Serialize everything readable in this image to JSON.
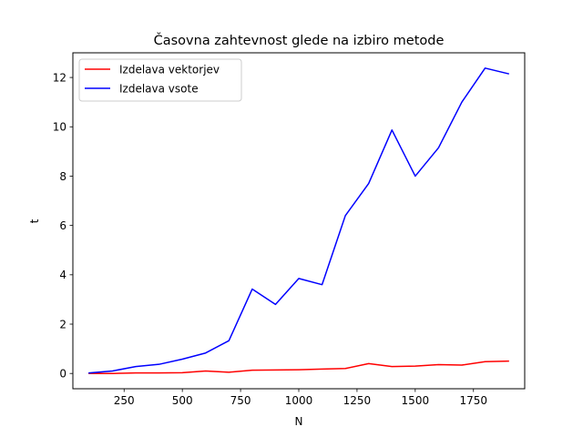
{
  "chart_data": {
    "type": "line",
    "title": "Časovna zahtevnost glede na izbiro metode",
    "xlabel": "N",
    "ylabel": "t",
    "xlim": [
      30,
      1970
    ],
    "ylim": [
      -0.62,
      13.0
    ],
    "xticks": [
      250,
      500,
      750,
      1000,
      1250,
      1500,
      1750
    ],
    "yticks": [
      0,
      2,
      4,
      6,
      8,
      10,
      12
    ],
    "grid": false,
    "legend_position": "top-left",
    "x": [
      100,
      200,
      300,
      400,
      500,
      600,
      700,
      800,
      900,
      1000,
      1100,
      1200,
      1300,
      1400,
      1500,
      1600,
      1700,
      1800,
      1900
    ],
    "series": [
      {
        "name": "Izdelava vektorjev",
        "color": "#ff0000",
        "values": [
          0.0,
          0.0,
          0.02,
          0.02,
          0.03,
          0.1,
          0.05,
          0.13,
          0.14,
          0.15,
          0.18,
          0.2,
          0.4,
          0.28,
          0.3,
          0.36,
          0.34,
          0.48,
          0.5
        ]
      },
      {
        "name": "Izdelava vsote",
        "color": "#0000ff",
        "values": [
          0.02,
          0.1,
          0.28,
          0.37,
          0.58,
          0.83,
          1.33,
          3.42,
          2.8,
          3.85,
          3.6,
          6.4,
          7.7,
          9.87,
          8.0,
          9.15,
          11.0,
          12.38,
          12.15
        ]
      }
    ]
  }
}
